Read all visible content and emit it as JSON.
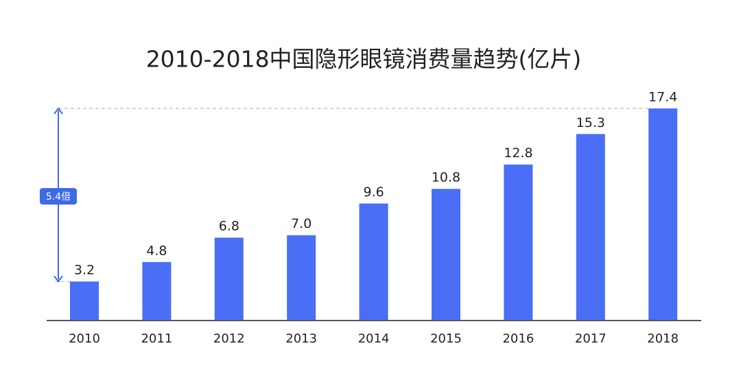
{
  "chart_data": {
    "type": "bar",
    "title": "2010-2018中国隐形眼镜消费量趋势(亿片)",
    "categories": [
      "2010",
      "2011",
      "2012",
      "2013",
      "2014",
      "2015",
      "2016",
      "2017",
      "2018"
    ],
    "values": [
      3.2,
      4.8,
      6.8,
      7.0,
      9.6,
      10.8,
      12.8,
      15.3,
      17.4
    ],
    "value_labels": [
      "3.2",
      "4.8",
      "6.8",
      "7.0",
      "9.6",
      "10.8",
      "12.8",
      "15.3",
      "17.4"
    ],
    "color": "#4a6ef5",
    "annotation": "5.4倍"
  }
}
